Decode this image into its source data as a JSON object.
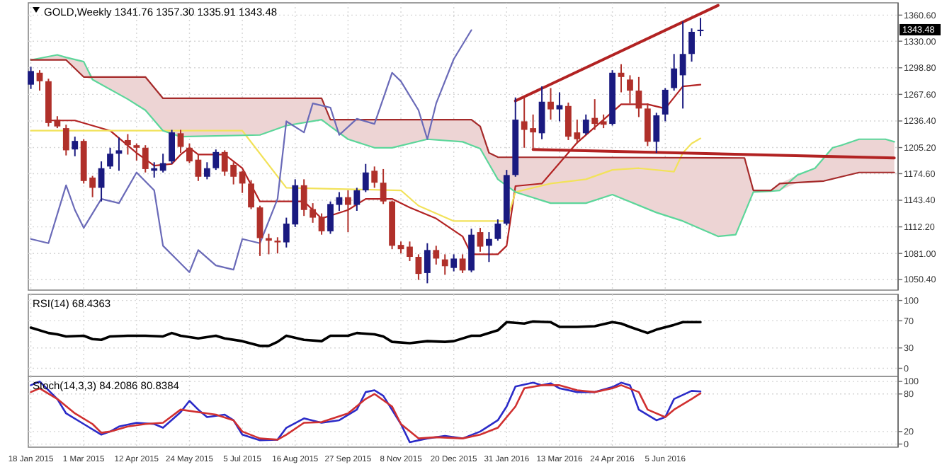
{
  "chart_data": [
    {
      "type": "candlestick",
      "title": "GOLD,Weekly  1341.76 1357.30 1335.91 1343.48",
      "xlim": [
        "2015-01-16",
        "2016-12-07"
      ],
      "ylim": [
        1038,
        1375
      ],
      "grid": true,
      "tick_labels": "y",
      "xticks": [
        {
          "value": "2015-01-18",
          "label": null
        },
        {
          "value": "2015-03-01",
          "label": null
        },
        {
          "value": "2015-04-12",
          "label": null
        },
        {
          "value": "2015-05-24",
          "label": null
        },
        {
          "value": "2015-07-05",
          "label": null
        },
        {
          "value": "2015-08-16",
          "label": null
        },
        {
          "value": "2015-09-27",
          "label": null
        },
        {
          "value": "2015-11-08",
          "label": null
        },
        {
          "value": "2015-12-20",
          "label": null
        },
        {
          "value": "2016-01-31",
          "label": null
        },
        {
          "value": "2016-03-13",
          "label": null
        },
        {
          "value": "2016-04-24",
          "label": null
        },
        {
          "value": "2016-06-05",
          "label": null
        }
      ],
      "yticks": [
        {
          "value": 1050.4,
          "label": "1050.40"
        },
        {
          "value": 1081,
          "label": "1081.00"
        },
        {
          "value": 1112.2,
          "label": "1112.20"
        },
        {
          "value": 1143.4,
          "label": "1143.40"
        },
        {
          "value": 1174.6,
          "label": "1174.60"
        },
        {
          "value": 1205.2,
          "label": "1205.20"
        },
        {
          "value": 1236.4,
          "label": "1236.40"
        },
        {
          "value": 1267.6,
          "label": "1267.60"
        },
        {
          "value": 1298.8,
          "label": "1298.80"
        },
        {
          "value": 1330,
          "label": "1330.00"
        },
        {
          "value": 1360.6,
          "label": "1360.60"
        }
      ],
      "annotations": [
        "1343.48"
      ],
      "x": [
        "2015-01-18",
        "2015-01-25",
        "2015-02-01",
        "2015-02-08",
        "2015-02-15",
        "2015-02-22",
        "2015-03-01",
        "2015-03-08",
        "2015-03-15",
        "2015-03-22",
        "2015-03-29",
        "2015-04-05",
        "2015-04-12",
        "2015-04-19",
        "2015-04-26",
        "2015-05-03",
        "2015-05-10",
        "2015-05-17",
        "2015-05-24",
        "2015-05-31",
        "2015-06-07",
        "2015-06-14",
        "2015-06-21",
        "2015-06-28",
        "2015-07-05",
        "2015-07-12",
        "2015-07-19",
        "2015-07-26",
        "2015-08-02",
        "2015-08-09",
        "2015-08-16",
        "2015-08-23",
        "2015-08-30",
        "2015-09-06",
        "2015-09-13",
        "2015-09-20",
        "2015-09-27",
        "2015-10-04",
        "2015-10-11",
        "2015-10-18",
        "2015-10-25",
        "2015-11-01",
        "2015-11-08",
        "2015-11-15",
        "2015-11-22",
        "2015-11-29",
        "2015-12-06",
        "2015-12-13",
        "2015-12-20",
        "2015-12-27",
        "2016-01-03",
        "2016-01-10",
        "2016-01-17",
        "2016-01-24",
        "2016-01-31",
        "2016-02-07",
        "2016-02-14",
        "2016-02-21",
        "2016-02-28",
        "2016-03-06",
        "2016-03-13",
        "2016-03-20",
        "2016-03-27",
        "2016-04-03",
        "2016-04-10",
        "2016-04-17",
        "2016-04-24",
        "2016-05-01",
        "2016-05-08",
        "2016-05-15",
        "2016-05-22",
        "2016-05-29",
        "2016-06-05",
        "2016-06-12",
        "2016-06-19",
        "2016-06-26",
        "2016-07-03"
      ],
      "ohlc": [
        [
          1279,
          1300,
          1274,
          1295
        ],
        [
          1293,
          1296,
          1272,
          1283
        ],
        [
          1283,
          1286,
          1230,
          1234
        ],
        [
          1238,
          1242,
          1228,
          1230
        ],
        [
          1228,
          1232,
          1196,
          1202
        ],
        [
          1203,
          1218,
          1195,
          1213
        ],
        [
          1213,
          1215,
          1163,
          1166
        ],
        [
          1170,
          1172,
          1147,
          1158
        ],
        [
          1158,
          1189,
          1142,
          1181
        ],
        [
          1183,
          1205,
          1180,
          1198
        ],
        [
          1198,
          1217,
          1178,
          1202
        ],
        [
          1214,
          1221,
          1197,
          1208
        ],
        [
          1208,
          1210,
          1190,
          1205
        ],
        [
          1205,
          1208,
          1176,
          1180
        ],
        [
          1178,
          1188,
          1170,
          1181
        ],
        [
          1178,
          1198,
          1176,
          1187
        ],
        [
          1189,
          1226,
          1186,
          1223
        ],
        [
          1222,
          1226,
          1199,
          1206
        ],
        [
          1205,
          1210,
          1187,
          1189
        ],
        [
          1191,
          1197,
          1166,
          1171
        ],
        [
          1171,
          1188,
          1168,
          1181
        ],
        [
          1181,
          1203,
          1179,
          1200
        ],
        [
          1200,
          1202,
          1172,
          1177
        ],
        [
          1185,
          1188,
          1162,
          1171
        ],
        [
          1177,
          1178,
          1152,
          1163
        ],
        [
          1163,
          1167,
          1133,
          1135
        ],
        [
          1135,
          1137,
          1078,
          1099
        ],
        [
          1099,
          1104,
          1080,
          1096
        ],
        [
          1096,
          1100,
          1081,
          1094
        ],
        [
          1094,
          1123,
          1088,
          1116
        ],
        [
          1115,
          1168,
          1112,
          1161
        ],
        [
          1161,
          1168,
          1125,
          1132
        ],
        [
          1133,
          1140,
          1117,
          1123
        ],
        [
          1124,
          1128,
          1103,
          1107
        ],
        [
          1107,
          1142,
          1104,
          1139
        ],
        [
          1138,
          1153,
          1131,
          1147
        ],
        [
          1147,
          1155,
          1106,
          1138
        ],
        [
          1138,
          1158,
          1131,
          1155
        ],
        [
          1155,
          1186,
          1153,
          1176
        ],
        [
          1178,
          1183,
          1158,
          1164
        ],
        [
          1164,
          1180,
          1139,
          1142
        ],
        [
          1142,
          1143,
          1086,
          1090
        ],
        [
          1091,
          1095,
          1081,
          1086
        ],
        [
          1089,
          1095,
          1072,
          1077
        ],
        [
          1077,
          1080,
          1050,
          1057
        ],
        [
          1058,
          1093,
          1046,
          1085
        ],
        [
          1085,
          1090,
          1068,
          1075
        ],
        [
          1074,
          1080,
          1056,
          1066
        ],
        [
          1064,
          1080,
          1060,
          1075
        ],
        [
          1075,
          1080,
          1058,
          1061
        ],
        [
          1061,
          1110,
          1059,
          1103
        ],
        [
          1106,
          1111,
          1083,
          1089
        ],
        [
          1090,
          1106,
          1071,
          1098
        ],
        [
          1098,
          1121,
          1096,
          1116
        ],
        [
          1116,
          1179,
          1114,
          1173
        ],
        [
          1173,
          1264,
          1171,
          1238
        ],
        [
          1236,
          1264,
          1205,
          1226
        ],
        [
          1228,
          1244,
          1202,
          1223
        ],
        [
          1222,
          1277,
          1215,
          1259
        ],
        [
          1259,
          1275,
          1238,
          1250
        ],
        [
          1250,
          1270,
          1236,
          1255
        ],
        [
          1254,
          1258,
          1214,
          1218
        ],
        [
          1223,
          1238,
          1210,
          1215
        ],
        [
          1222,
          1244,
          1220,
          1238
        ],
        [
          1240,
          1262,
          1226,
          1233
        ],
        [
          1236,
          1244,
          1228,
          1232
        ],
        [
          1233,
          1296,
          1231,
          1293
        ],
        [
          1293,
          1303,
          1270,
          1288
        ],
        [
          1285,
          1290,
          1257,
          1272
        ],
        [
          1272,
          1288,
          1241,
          1251
        ],
        [
          1251,
          1257,
          1207,
          1212
        ],
        [
          1212,
          1246,
          1199,
          1243
        ],
        [
          1244,
          1275,
          1236,
          1273
        ],
        [
          1275,
          1315,
          1272,
          1298
        ],
        [
          1290,
          1353,
          1251,
          1315
        ],
        [
          1315,
          1345,
          1306,
          1341
        ],
        [
          1341.76,
          1357.3,
          1335.91,
          1343.48
        ]
      ],
      "colors": [
        "#1a1a80",
        "#b0302a",
        "#b0302a",
        "#b0302a",
        "#b0302a",
        "#1a1a80",
        "#b0302a",
        "#b0302a",
        "#1a1a80",
        "#1a1a80",
        "#1a1a80",
        "#b0302a",
        "#b0302a",
        "#b0302a",
        "#1a1a80",
        "#1a1a80",
        "#1a1a80",
        "#b0302a",
        "#b0302a",
        "#b0302a",
        "#1a1a80",
        "#1a1a80",
        "#b0302a",
        "#b0302a",
        "#b0302a",
        "#b0302a",
        "#b0302a",
        "#b0302a",
        "#b0302a",
        "#1a1a80",
        "#1a1a80",
        "#b0302a",
        "#b0302a",
        "#b0302a",
        "#1a1a80",
        "#1a1a80",
        "#b0302a",
        "#1a1a80",
        "#1a1a80",
        "#b0302a",
        "#b0302a",
        "#b0302a",
        "#b0302a",
        "#b0302a",
        "#b0302a",
        "#1a1a80",
        "#b0302a",
        "#b0302a",
        "#1a1a80",
        "#b0302a",
        "#1a1a80",
        "#b0302a",
        "#1a1a80",
        "#1a1a80",
        "#1a1a80",
        "#1a1a80",
        "#b0302a",
        "#b0302a",
        "#1a1a80",
        "#b0302a",
        "#1a1a80",
        "#b0302a",
        "#b0302a",
        "#1a1a80",
        "#b0302a",
        "#b0302a",
        "#1a1a80",
        "#b0302a",
        "#b0302a",
        "#b0302a",
        "#b0302a",
        "#1a1a80",
        "#1a1a80",
        "#1a1a80",
        "#1a1a80",
        "#1a1a80",
        "#1a1a80"
      ],
      "series": [
        {
          "type": "line",
          "color": "#b22222",
          "x": [
            "2015-02-01",
            "2015-02-22",
            "2015-03-22",
            "2015-04-12",
            "2015-04-26",
            "2015-05-10",
            "2015-05-17",
            "2015-05-24",
            "2015-05-31",
            "2015-06-21",
            "2015-07-05",
            "2015-07-19",
            "2015-08-23",
            "2015-09-06",
            "2015-09-27",
            "2015-10-11",
            "2015-11-01",
            "2015-11-15",
            "2015-12-06",
            "2015-12-27",
            "2016-01-03",
            "2016-01-24",
            "2016-01-31",
            "2016-02-07",
            "2016-02-28",
            "2016-03-27",
            "2016-05-01",
            "2016-05-22",
            "2016-06-05",
            "2016-06-19",
            "2016-07-03"
          ],
          "values": [
            1237,
            1237,
            1225,
            1199,
            1184,
            1186,
            1197,
            1205,
            1197,
            1197,
            1181,
            1142,
            1142,
            1122,
            1132,
            1145,
            1145,
            1135,
            1122,
            1101,
            1080,
            1080,
            1090,
            1160,
            1163,
            1211,
            1256,
            1256,
            1251,
            1277,
            1279
          ]
        },
        {
          "type": "line",
          "color": "#f2e25a",
          "x": [
            "2015-01-18",
            "2015-07-05",
            "2015-08-09",
            "2015-11-08",
            "2015-11-22",
            "2015-12-20",
            "2016-01-31",
            "2016-02-07",
            "2016-03-06",
            "2016-04-03",
            "2016-04-24",
            "2016-05-15",
            "2016-06-12",
            "2016-06-19",
            "2016-06-26",
            "2016-07-03"
          ],
          "values": [
            1225,
            1225,
            1158,
            1155,
            1137,
            1119,
            1119,
            1153,
            1163,
            1168,
            1179,
            1181,
            1177,
            1199,
            1210,
            1216
          ]
        },
        {
          "type": "line",
          "color": "#5cd69a",
          "x": [
            "2015-01-18",
            "2015-02-08",
            "2015-02-15",
            "2015-03-01",
            "2015-03-08",
            "2015-04-05",
            "2015-04-19",
            "2015-05-03",
            "2015-05-17",
            "2015-07-19",
            "2015-08-09",
            "2015-09-06",
            "2015-09-13",
            "2015-09-27",
            "2015-10-18",
            "2015-11-01",
            "2015-11-29",
            "2015-12-27",
            "2016-01-03",
            "2016-01-10",
            "2016-01-17",
            "2016-01-24",
            "2016-02-07",
            "2016-03-06",
            "2016-04-03",
            "2016-04-24",
            "2016-05-29",
            "2016-06-19",
            "2016-07-17",
            "2016-07-31",
            "2016-08-07",
            "2016-08-14",
            "2016-08-28",
            "2016-09-04",
            "2016-09-18",
            "2016-10-02",
            "2016-10-09",
            "2016-10-16",
            "2016-10-23",
            "2016-11-06",
            "2016-11-27",
            "2016-12-04"
          ],
          "values": [
            1308,
            1314,
            1311,
            1306,
            1285,
            1262,
            1249,
            1225,
            1218,
            1220,
            1231,
            1238,
            1230,
            1215,
            1205,
            1205,
            1215,
            1212,
            1208,
            1204,
            1186,
            1168,
            1153,
            1140,
            1140,
            1150,
            1129,
            1119,
            1101,
            1103,
            1128,
            1153,
            1154,
            1155,
            1173,
            1181,
            1193,
            1205,
            1208,
            1215,
            1215,
            1212
          ],
          "lower": [
            1308,
            1308,
            1308,
            1288,
            1285,
            1262,
            1249,
            1225,
            1218,
            1220,
            1231,
            1238,
            1230,
            1215,
            1205,
            1205,
            1215,
            1212,
            1208,
            1204,
            1186,
            1168,
            1153,
            1140,
            1140,
            1150,
            1129,
            1119,
            1101,
            1103,
            1128,
            1153,
            1154,
            1155,
            1164,
            1165,
            1166,
            1168,
            1171,
            1176,
            1176,
            1176
          ],
          "upper": [
            1308,
            1314,
            1311,
            1306,
            1288,
            1288,
            1288,
            1263,
            1263,
            1263,
            1263,
            1263,
            1238,
            1238,
            1238,
            1238,
            1238,
            1238,
            1238,
            1230,
            1199,
            1194,
            1194,
            1194,
            1194,
            1194,
            1193,
            1193,
            1193,
            1193,
            1193,
            1155,
            1155,
            1163,
            1173,
            1181,
            1193,
            1205,
            1208,
            1215,
            1215,
            1212
          ]
        },
        {
          "type": "line",
          "color": "#a52a2a",
          "x": [
            "2015-01-18",
            "2015-02-15",
            "2015-03-01",
            "2015-04-19",
            "2015-05-03",
            "2015-09-06",
            "2015-09-13",
            "2016-01-03",
            "2016-01-10",
            "2016-01-17",
            "2016-01-24",
            "2016-08-07",
            "2016-08-14",
            "2016-08-28",
            "2016-09-04",
            "2016-10-09",
            "2016-10-23",
            "2016-11-06",
            "2016-12-04"
          ],
          "values": [
            1308,
            1308,
            1288,
            1288,
            1263,
            1263,
            1238,
            1238,
            1230,
            1199,
            1194,
            1193,
            1155,
            1155,
            1163,
            1166,
            1171,
            1176,
            1176
          ]
        },
        {
          "type": "line",
          "color": "#6a6ab8",
          "x": [
            "2015-01-18",
            "2015-02-01",
            "2015-02-15",
            "2015-02-22",
            "2015-03-01",
            "2015-03-15",
            "2015-03-29",
            "2015-04-12",
            "2015-04-26",
            "2015-05-03",
            "2015-05-24",
            "2015-05-31",
            "2015-06-14",
            "2015-06-28",
            "2015-07-05",
            "2015-07-19",
            "2015-08-02",
            "2015-08-09",
            "2015-08-23",
            "2015-08-30",
            "2015-09-13",
            "2015-09-20",
            "2015-10-04",
            "2015-10-18",
            "2015-11-01",
            "2015-11-08",
            "2015-11-22",
            "2015-11-29",
            "2015-12-06",
            "2015-12-20",
            "2016-01-03"
          ],
          "values": [
            1098,
            1093,
            1161,
            1132,
            1111,
            1145,
            1140,
            1176,
            1155,
            1090,
            1059,
            1085,
            1067,
            1062,
            1098,
            1093,
            1145,
            1236,
            1223,
            1257,
            1252,
            1220,
            1239,
            1233,
            1293,
            1283,
            1249,
            1215,
            1257,
            1309,
            1343
          ]
        },
        {
          "type": "line",
          "color": "#b22222",
          "x": [
            "2016-02-07",
            "2016-07-17"
          ],
          "values": [
            1260,
            1372
          ]
        },
        {
          "type": "line",
          "color": "#b22222",
          "x": [
            "2016-02-21",
            "2016-12-04"
          ],
          "values": [
            1203,
            1193
          ]
        }
      ]
    },
    {
      "type": "line",
      "title": "RSI(14) 68.4363",
      "xlim": [
        "2015-01-16",
        "2016-12-07"
      ],
      "ylim": [
        -12,
        109
      ],
      "yticks": [
        0,
        30,
        70,
        100
      ],
      "grid": true,
      "tick_labels": "y",
      "xticks": [
        {
          "value": "2015-01-18",
          "label": null
        },
        {
          "value": "2015-03-01",
          "label": null
        },
        {
          "value": "2015-04-12",
          "label": null
        },
        {
          "value": "2015-05-24",
          "label": null
        },
        {
          "value": "2015-07-05",
          "label": null
        },
        {
          "value": "2015-08-16",
          "label": null
        },
        {
          "value": "2015-09-27",
          "label": null
        },
        {
          "value": "2015-11-08",
          "label": null
        },
        {
          "value": "2015-12-20",
          "label": null
        },
        {
          "value": "2016-01-31",
          "label": null
        },
        {
          "value": "2016-03-13",
          "label": null
        },
        {
          "value": "2016-04-24",
          "label": null
        },
        {
          "value": "2016-06-05",
          "label": null
        }
      ],
      "series": [
        {
          "color": "#000000",
          "x": [
            "2015-01-18",
            "2015-02-01",
            "2015-02-08",
            "2015-02-15",
            "2015-03-01",
            "2015-03-08",
            "2015-03-15",
            "2015-03-22",
            "2015-04-05",
            "2015-04-19",
            "2015-05-03",
            "2015-05-10",
            "2015-05-17",
            "2015-05-31",
            "2015-06-14",
            "2015-06-21",
            "2015-07-05",
            "2015-07-19",
            "2015-07-26",
            "2015-08-02",
            "2015-08-09",
            "2015-08-23",
            "2015-09-06",
            "2015-09-13",
            "2015-09-27",
            "2015-10-04",
            "2015-10-18",
            "2015-10-25",
            "2015-11-01",
            "2015-11-15",
            "2015-11-29",
            "2015-12-13",
            "2015-12-20",
            "2016-01-03",
            "2016-01-10",
            "2016-01-24",
            "2016-01-31",
            "2016-02-14",
            "2016-02-21",
            "2016-03-06",
            "2016-03-13",
            "2016-03-27",
            "2016-04-10",
            "2016-04-24",
            "2016-05-01",
            "2016-05-08",
            "2016-05-22",
            "2016-05-29",
            "2016-06-12",
            "2016-06-19",
            "2016-07-03"
          ],
          "values": [
            60,
            52,
            50,
            47,
            48,
            43,
            42,
            47,
            48,
            48,
            47,
            52,
            48,
            44,
            48,
            44,
            40,
            33,
            33,
            39,
            48,
            42,
            40,
            48,
            48,
            52,
            50,
            47,
            39,
            37,
            40,
            39,
            40,
            48,
            48,
            56,
            68,
            66,
            69,
            68,
            61,
            61,
            62,
            68,
            66,
            61,
            52,
            57,
            64,
            68,
            68
          ]
        }
      ]
    },
    {
      "type": "line",
      "title": "Stoch(14,3,3) 84.2086 80.8384",
      "xlim": [
        "2015-01-16",
        "2016-12-07"
      ],
      "ylim": [
        -5,
        108
      ],
      "yticks": [
        0,
        20,
        80,
        100
      ],
      "grid": true,
      "xticks": [
        {
          "value": "2015-01-18",
          "label": "18 Jan 2015"
        },
        {
          "value": "2015-03-01",
          "label": "1 Mar 2015"
        },
        {
          "value": "2015-04-12",
          "label": "12 Apr 2015"
        },
        {
          "value": "2015-05-24",
          "label": "24 May 2015"
        },
        {
          "value": "2015-07-05",
          "label": "5 Jul 2015"
        },
        {
          "value": "2015-08-16",
          "label": "16 Aug 2015"
        },
        {
          "value": "2015-09-27",
          "label": "27 Sep 2015"
        },
        {
          "value": "2015-11-08",
          "label": "8 Nov 2015"
        },
        {
          "value": "2015-12-20",
          "label": "20 Dec 2015"
        },
        {
          "value": "2016-01-31",
          "label": "31 Jan 2016"
        },
        {
          "value": "2016-03-13",
          "label": "13 Mar 2016"
        },
        {
          "value": "2016-04-24",
          "label": "24 Apr 2016"
        },
        {
          "value": "2016-06-05",
          "label": "5 Jun 2016"
        }
      ],
      "series": [
        {
          "color": "#2b2bc8",
          "x": [
            "2015-01-18",
            "2015-01-25",
            "2015-02-08",
            "2015-02-15",
            "2015-03-01",
            "2015-03-15",
            "2015-03-22",
            "2015-03-29",
            "2015-04-12",
            "2015-04-26",
            "2015-05-03",
            "2015-05-17",
            "2015-05-24",
            "2015-05-31",
            "2015-06-07",
            "2015-06-21",
            "2015-06-28",
            "2015-07-05",
            "2015-07-19",
            "2015-08-02",
            "2015-08-09",
            "2015-08-23",
            "2015-09-06",
            "2015-09-20",
            "2015-10-04",
            "2015-10-11",
            "2015-10-18",
            "2015-10-25",
            "2015-11-08",
            "2015-11-15",
            "2015-11-29",
            "2015-12-13",
            "2015-12-27",
            "2016-01-10",
            "2016-01-24",
            "2016-01-31",
            "2016-02-07",
            "2016-02-21",
            "2016-02-28",
            "2016-03-06",
            "2016-03-13",
            "2016-03-27",
            "2016-04-10",
            "2016-04-24",
            "2016-05-01",
            "2016-05-08",
            "2016-05-15",
            "2016-05-29",
            "2016-06-05",
            "2016-06-12",
            "2016-06-26",
            "2016-07-03"
          ],
          "values": [
            94,
            100,
            72,
            49,
            32,
            15,
            20,
            28,
            34,
            32,
            26,
            51,
            69,
            55,
            43,
            47,
            38,
            15,
            6,
            7,
            26,
            41,
            34,
            38,
            55,
            83,
            86,
            77,
            32,
            3,
            9,
            13,
            9,
            20,
            38,
            60,
            92,
            98,
            94,
            97,
            89,
            83,
            83,
            91,
            98,
            94,
            55,
            38,
            43,
            72,
            85,
            84
          ]
        },
        {
          "color": "#d03030",
          "x": [
            "2015-01-18",
            "2015-01-25",
            "2015-02-08",
            "2015-02-22",
            "2015-03-08",
            "2015-03-15",
            "2015-03-22",
            "2015-04-05",
            "2015-04-19",
            "2015-05-03",
            "2015-05-17",
            "2015-05-31",
            "2015-06-14",
            "2015-06-28",
            "2015-07-05",
            "2015-07-19",
            "2015-08-02",
            "2015-08-09",
            "2015-08-23",
            "2015-09-06",
            "2015-09-27",
            "2015-10-11",
            "2015-10-18",
            "2015-11-01",
            "2015-11-08",
            "2015-11-22",
            "2015-12-06",
            "2015-12-27",
            "2016-01-10",
            "2016-01-24",
            "2016-02-07",
            "2016-02-14",
            "2016-02-28",
            "2016-03-13",
            "2016-03-27",
            "2016-04-10",
            "2016-04-24",
            "2016-05-01",
            "2016-05-15",
            "2016-05-22",
            "2016-06-05",
            "2016-06-12",
            "2016-06-26",
            "2016-07-03"
          ],
          "values": [
            83,
            89,
            72,
            49,
            32,
            18,
            20,
            28,
            32,
            34,
            55,
            51,
            47,
            38,
            20,
            9,
            7,
            15,
            34,
            35,
            49,
            72,
            80,
            60,
            32,
            9,
            11,
            9,
            15,
            26,
            60,
            89,
            94,
            94,
            86,
            83,
            89,
            94,
            83,
            55,
            43,
            55,
            72,
            81
          ]
        }
      ]
    }
  ]
}
